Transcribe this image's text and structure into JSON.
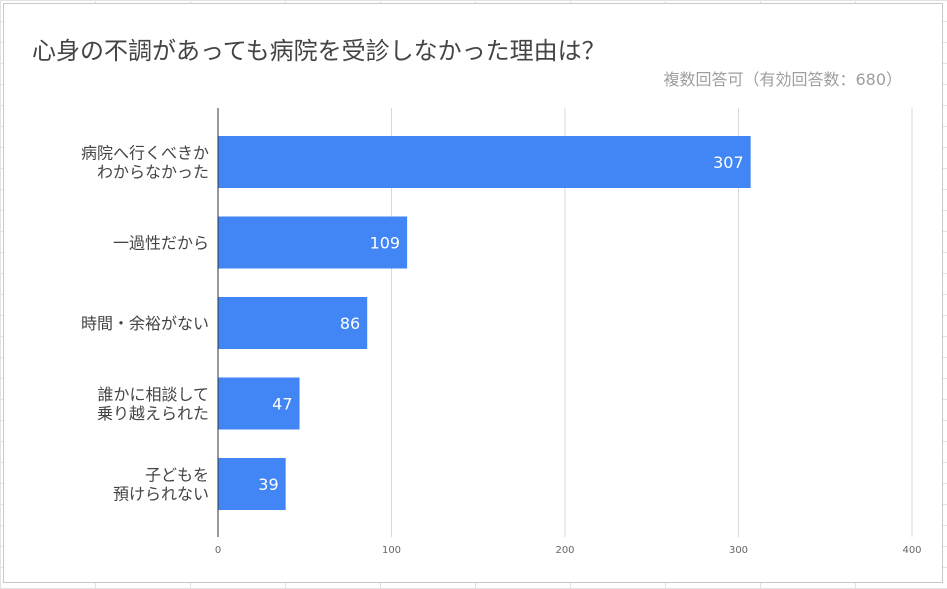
{
  "chart_data": {
    "type": "bar",
    "orientation": "horizontal",
    "title": "心身の不調があっても病院を受診しなかった理由は？",
    "subtitle": "複数回答可（有効回答数：680）",
    "categories": [
      [
        "病院へ行くべきか",
        "わからなかった"
      ],
      [
        "一過性だから"
      ],
      [
        "時間・余裕がない"
      ],
      [
        "誰かに相談して",
        "乗り越えられた"
      ],
      [
        "子どもを",
        "預けられない"
      ]
    ],
    "values": [
      307,
      109,
      86,
      47,
      39
    ],
    "data_labels": [
      "307",
      "109",
      "86",
      "47",
      "39"
    ],
    "xlim": [
      0,
      400
    ],
    "x_ticks": [
      0,
      100,
      200,
      300,
      400
    ],
    "x_tick_labels": [
      "0",
      "100",
      "200",
      "300",
      "400"
    ],
    "grid": true,
    "legend": "none",
    "bar_color": "#4285f4",
    "label_color": "#ffffff"
  }
}
